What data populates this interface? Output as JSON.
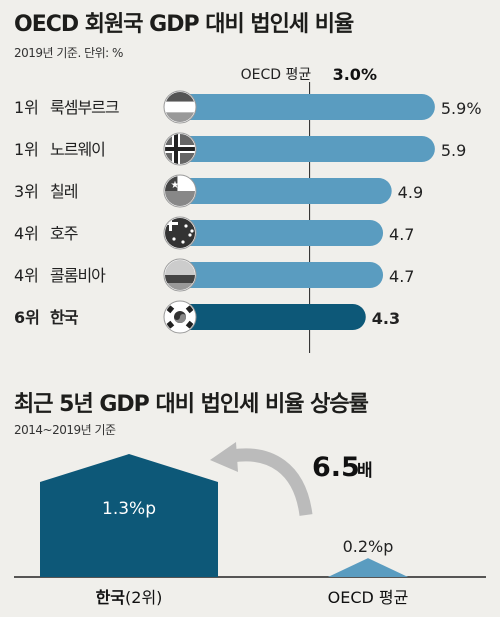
{
  "chart1": {
    "title": "OECD 회원국 GDP 대비 법인세 비율",
    "subtitle": "2019년 기준. 단위: %",
    "average_label": "OECD 평균",
    "average_value": "3.0%",
    "chart_data": {
      "type": "bar",
      "orientation": "horizontal",
      "categories": [
        "룩셈부르크",
        "노르웨이",
        "칠레",
        "호주",
        "콜롬비아",
        "한국"
      ],
      "ranks": [
        "1위",
        "1위",
        "3위",
        "4위",
        "4위",
        "6위"
      ],
      "values": [
        5.9,
        5.9,
        4.9,
        4.7,
        4.7,
        4.3
      ],
      "value_labels": [
        "5.9%",
        "5.9",
        "4.9",
        "4.7",
        "4.7",
        "4.3"
      ],
      "highlight": "한국",
      "reference_line": 3.0,
      "colors": {
        "bar": "#5a9cc0",
        "highlight": "#0d5878"
      }
    }
  },
  "chart2": {
    "title": "최근 5년 GDP 대비 법인세 비율 상승률",
    "subtitle": "2014~2019년 기준",
    "multiplier": "6.5",
    "multiplier_unit": "배",
    "chart_data": {
      "type": "area",
      "categories": [
        "한국",
        "OECD 평균"
      ],
      "values": [
        1.3,
        0.2
      ],
      "value_labels": [
        "1.3%p",
        "0.2%p"
      ],
      "xlabels": [
        {
          "main": "한국",
          "note": "(2위)"
        },
        {
          "main": "OECD 평균",
          "note": ""
        }
      ],
      "colors": {
        "korea": "#0d5878",
        "oecd": "#5a9cc0"
      }
    }
  }
}
